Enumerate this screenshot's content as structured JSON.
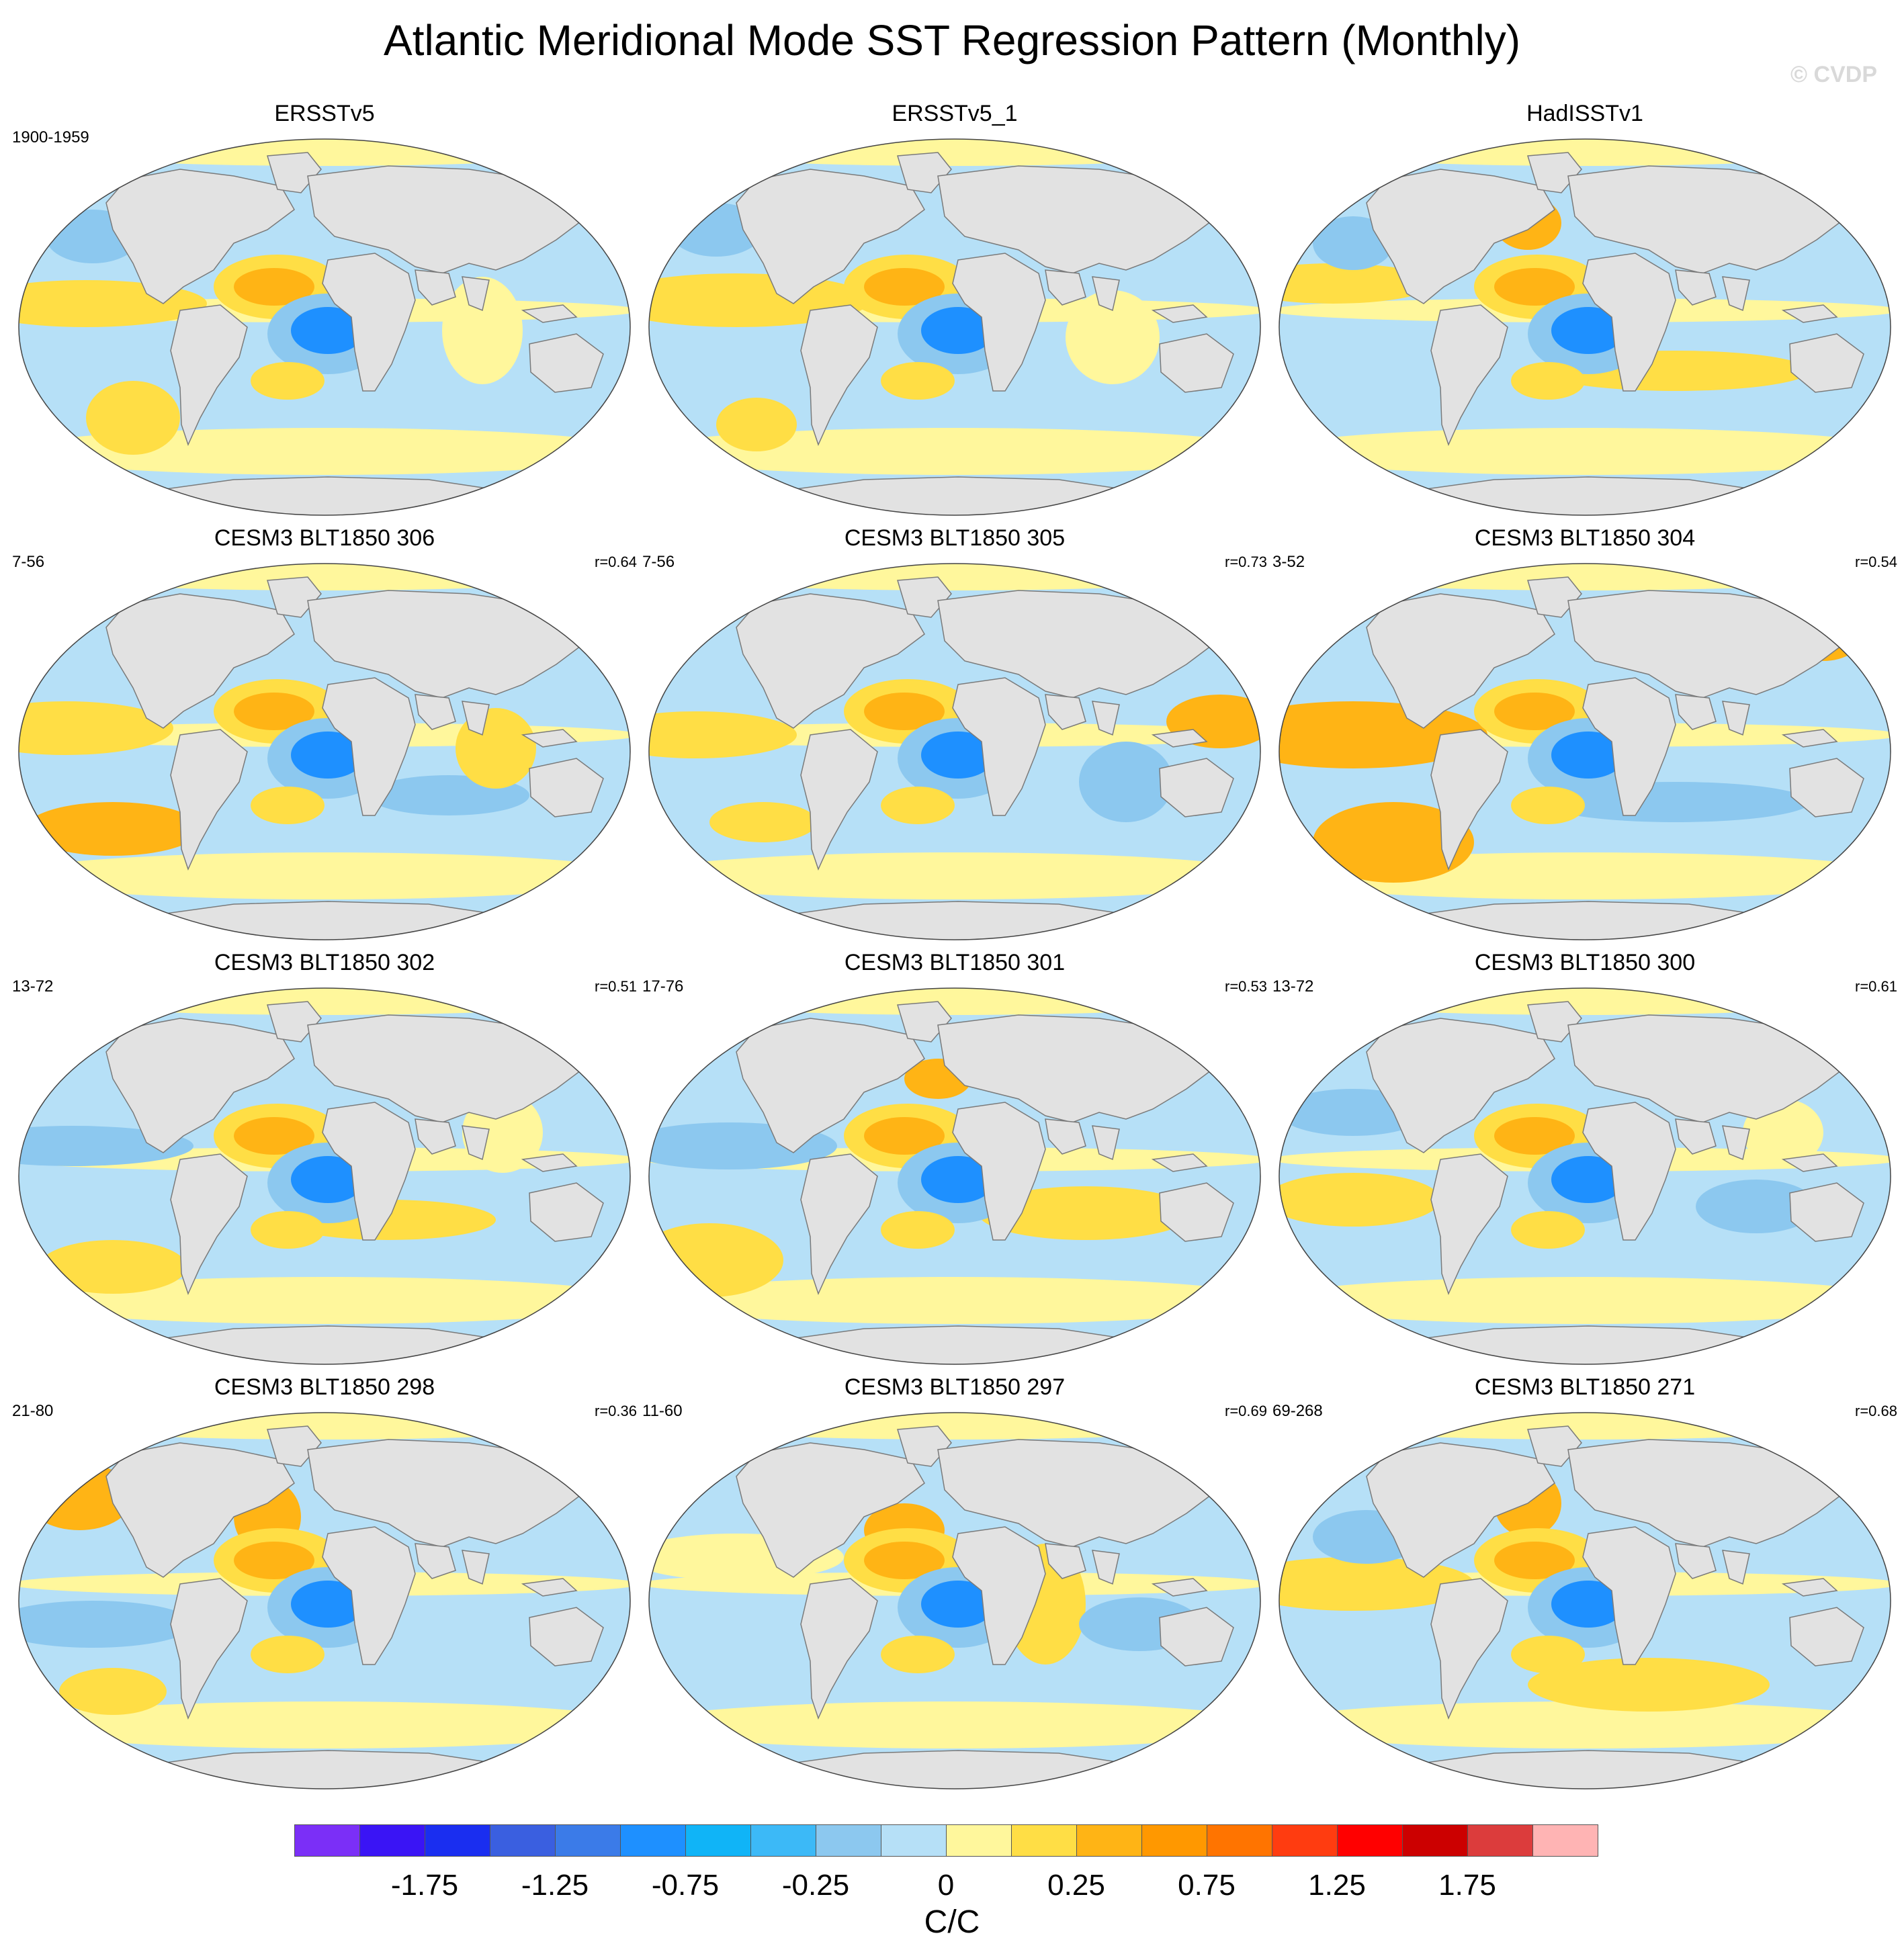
{
  "title": "Atlantic Meridional Mode SST Regression Pattern (Monthly)",
  "copyright": "© CVDP",
  "colors": {
    "land": "#e2e2e2",
    "coast": "#7a7a7a",
    "pos_weak": "#fff79c",
    "pos_mid": "#ffde45",
    "pos_strong": "#ffb415",
    "pos_max": "#ff8c00",
    "neg_weak": "#b6e0f7",
    "neg_mid": "#8cc8ef",
    "neg_strong": "#3cb9f7",
    "neg_max": "#1e90ff"
  },
  "panels": [
    {
      "title": "ERSSTv5",
      "years": "1900-1959",
      "r": "",
      "variant": 0
    },
    {
      "title": "ERSSTv5_1",
      "years": "",
      "r": "",
      "variant": 1
    },
    {
      "title": "HadISSTv1",
      "years": "",
      "r": "",
      "variant": 2
    },
    {
      "title": "CESM3 BLT1850 306",
      "years": "7-56",
      "r": "r=0.64",
      "variant": 3
    },
    {
      "title": "CESM3 BLT1850 305",
      "years": "7-56",
      "r": "r=0.73",
      "variant": 4
    },
    {
      "title": "CESM3 BLT1850 304",
      "years": "3-52",
      "r": "r=0.54",
      "variant": 5
    },
    {
      "title": "CESM3 BLT1850 302",
      "years": "13-72",
      "r": "r=0.51",
      "variant": 6
    },
    {
      "title": "CESM3 BLT1850 301",
      "years": "17-76",
      "r": "r=0.53",
      "variant": 7
    },
    {
      "title": "CESM3 BLT1850 300",
      "years": "13-72",
      "r": "r=0.61",
      "variant": 8
    },
    {
      "title": "CESM3 BLT1850 298",
      "years": "21-80",
      "r": "r=0.36",
      "variant": 9
    },
    {
      "title": "CESM3 BLT1850 297",
      "years": "11-60",
      "r": "r=0.69",
      "variant": 10
    },
    {
      "title": "CESM3 BLT1850 271",
      "years": "69-268",
      "r": "r=0.68",
      "variant": 11
    }
  ],
  "colorbar": {
    "colors": [
      "#7b2ff7",
      "#3a14f5",
      "#1a2ef0",
      "#3a5fe0",
      "#3b7be8",
      "#1e90ff",
      "#10b4f7",
      "#3cb9f7",
      "#8cc8ef",
      "#b6e0f7",
      "#fff79c",
      "#ffde45",
      "#ffb415",
      "#ff9800",
      "#ff7400",
      "#ff3c10",
      "#ff0000",
      "#cc0000",
      "#dc3c3c",
      "#ffb4b4"
    ],
    "tick_labels": [
      "-1.75",
      "-1.25",
      "-0.75",
      "-0.25",
      "0",
      "0.25",
      "0.75",
      "1.25",
      "1.75"
    ],
    "unit": "C/C"
  }
}
